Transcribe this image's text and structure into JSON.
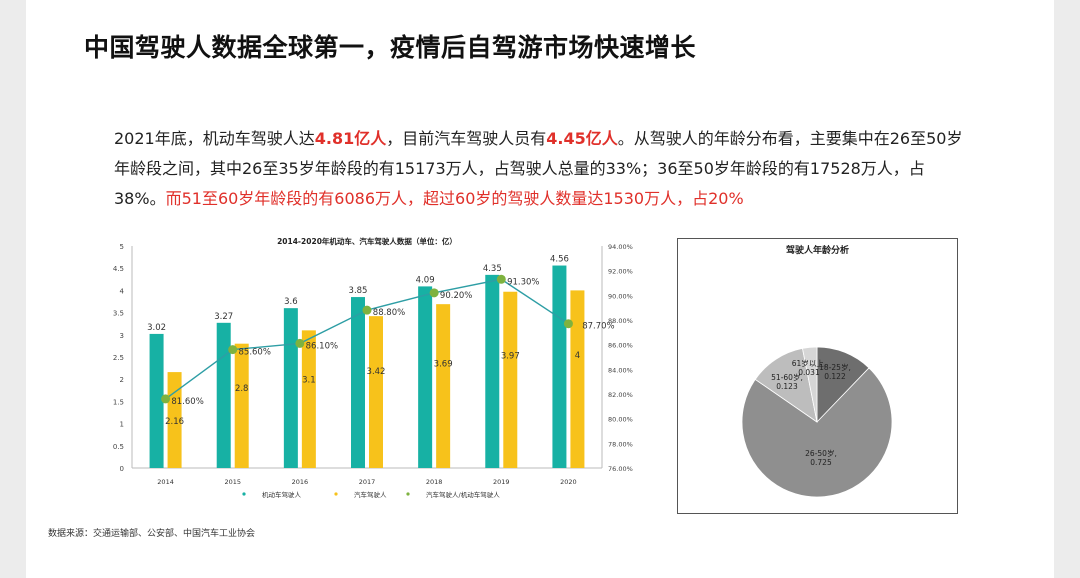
{
  "title": "中国驾驶人数据全球第一，疫情后自驾游市场快速增长",
  "paragraph": {
    "p1": "2021年底，机动车驾驶人达",
    "h1": "4.81亿人",
    "p2": "，目前汽车驾驶人员有",
    "h2": "4.45亿人",
    "p3": "。从驾驶人的年龄分布看，主要集中在26至50岁年龄段之间，其中26至35岁年龄段的有15173万人，占驾驶人总量的33%；36至50岁年龄段的有17528万人，占38%。",
    "red": "而51至60岁年龄段的有6086万人，超过60岁的驾驶人数量达1530万人，占20%"
  },
  "source": "数据来源：交通运输部、公安部、中国汽车工业协会",
  "colors": {
    "teal": "#17b1a4",
    "yellow": "#f7c21b",
    "line": "#2e9ea5",
    "marker": "#7eb23f"
  },
  "chart_data": [
    {
      "type": "bar",
      "title": "2014-2020年机动车、汽车驾驶人数据（单位：亿）",
      "categories": [
        "2014",
        "2015",
        "2016",
        "2017",
        "2018",
        "2019",
        "2020"
      ],
      "series": [
        {
          "name": "机动车驾驶人",
          "type": "bar",
          "axis": "left",
          "values": [
            3.02,
            3.27,
            3.6,
            3.85,
            4.09,
            4.35,
            4.56
          ],
          "labels": [
            "3.02",
            "3.27",
            "3.6",
            "3.85",
            "4.09",
            "4.35",
            "4.56"
          ]
        },
        {
          "name": "汽车驾驶人",
          "type": "bar",
          "axis": "left",
          "values": [
            2.16,
            2.8,
            3.1,
            3.42,
            3.69,
            3.97,
            4
          ],
          "labels": [
            "2.16",
            "2.8",
            "3.1",
            "3.42",
            "3.69",
            "3.97",
            "4"
          ]
        },
        {
          "name": "汽车驾驶人/机动车驾驶人",
          "type": "line",
          "axis": "right",
          "values": [
            81.6,
            85.6,
            86.1,
            88.8,
            90.2,
            91.3,
            87.7
          ],
          "labels": [
            "81.60%",
            "85.60%",
            "86.10%",
            "88.80%",
            "90.20%",
            "91.30%",
            "87.70%"
          ]
        }
      ],
      "ylim": [
        0,
        5
      ],
      "yticks": [
        "0",
        "0.5",
        "1",
        "1.5",
        "2",
        "2.5",
        "3",
        "3.5",
        "4",
        "4.5",
        "5"
      ],
      "y2lim": [
        76,
        94
      ],
      "y2ticks": [
        "76.00%",
        "78.00%",
        "80.00%",
        "82.00%",
        "84.00%",
        "86.00%",
        "88.00%",
        "90.00%",
        "92.00%",
        "94.00%"
      ],
      "legend": "bottom"
    },
    {
      "type": "pie",
      "title": "驾驶人年龄分析",
      "slices": [
        {
          "label": "18-25岁",
          "value": 0.122,
          "value_label": "0.122",
          "color": "#6e6e6e"
        },
        {
          "label": "26-50岁",
          "value": 0.725,
          "value_label": "0.725",
          "color": "#8f8f8f"
        },
        {
          "label": "51-60岁",
          "value": 0.123,
          "value_label": "0.123",
          "color": "#bdbdbd"
        },
        {
          "label": "61岁以上",
          "value": 0.031,
          "value_label": "0.031",
          "color": "#d6d6d6"
        }
      ]
    }
  ]
}
